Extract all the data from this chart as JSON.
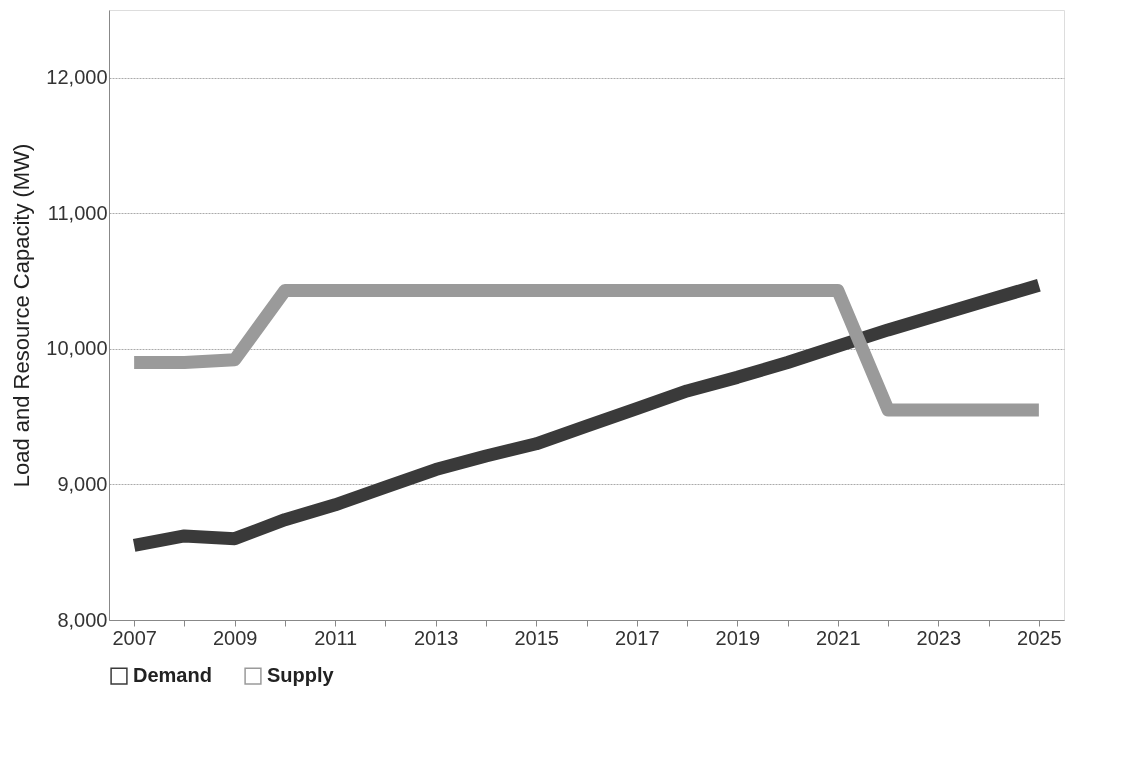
{
  "chart_data": {
    "type": "line",
    "ylabel": "Load and Resource Capacity (MW)",
    "categories": [
      "2007",
      null,
      "2009",
      null,
      "2011",
      null,
      "2013",
      null,
      "2015",
      null,
      "2017",
      null,
      "2019",
      null,
      "2021",
      null,
      "2023",
      null,
      "2025"
    ],
    "series": [
      {
        "name": "Demand",
        "color": "#3a3a3a",
        "values": [
          8550,
          8620,
          8600,
          8740,
          8850,
          8980,
          9110,
          9210,
          9300,
          9430,
          9560,
          9690,
          9790,
          9900,
          10020,
          10140,
          10250,
          10360,
          10470
        ]
      },
      {
        "name": "Supply",
        "color": "#9a9a9a",
        "values": [
          9900,
          9900,
          9920,
          10430,
          10430,
          10430,
          10430,
          10430,
          10430,
          10430,
          10430,
          10430,
          10430,
          10430,
          10430,
          9550,
          9550,
          9550,
          9550
        ]
      }
    ],
    "ylim": [
      8000,
      12500
    ],
    "yticks": [
      {
        "value": 8000,
        "label": "8,000"
      },
      {
        "value": 9000,
        "label": "9,000"
      },
      {
        "value": 10000,
        "label": "10,000"
      },
      {
        "value": 11000,
        "label": "11,000"
      },
      {
        "value": 12000,
        "label": "12,000"
      }
    ],
    "grid": "y",
    "legend": "bottom",
    "line_style": "solid",
    "marker": "none"
  }
}
